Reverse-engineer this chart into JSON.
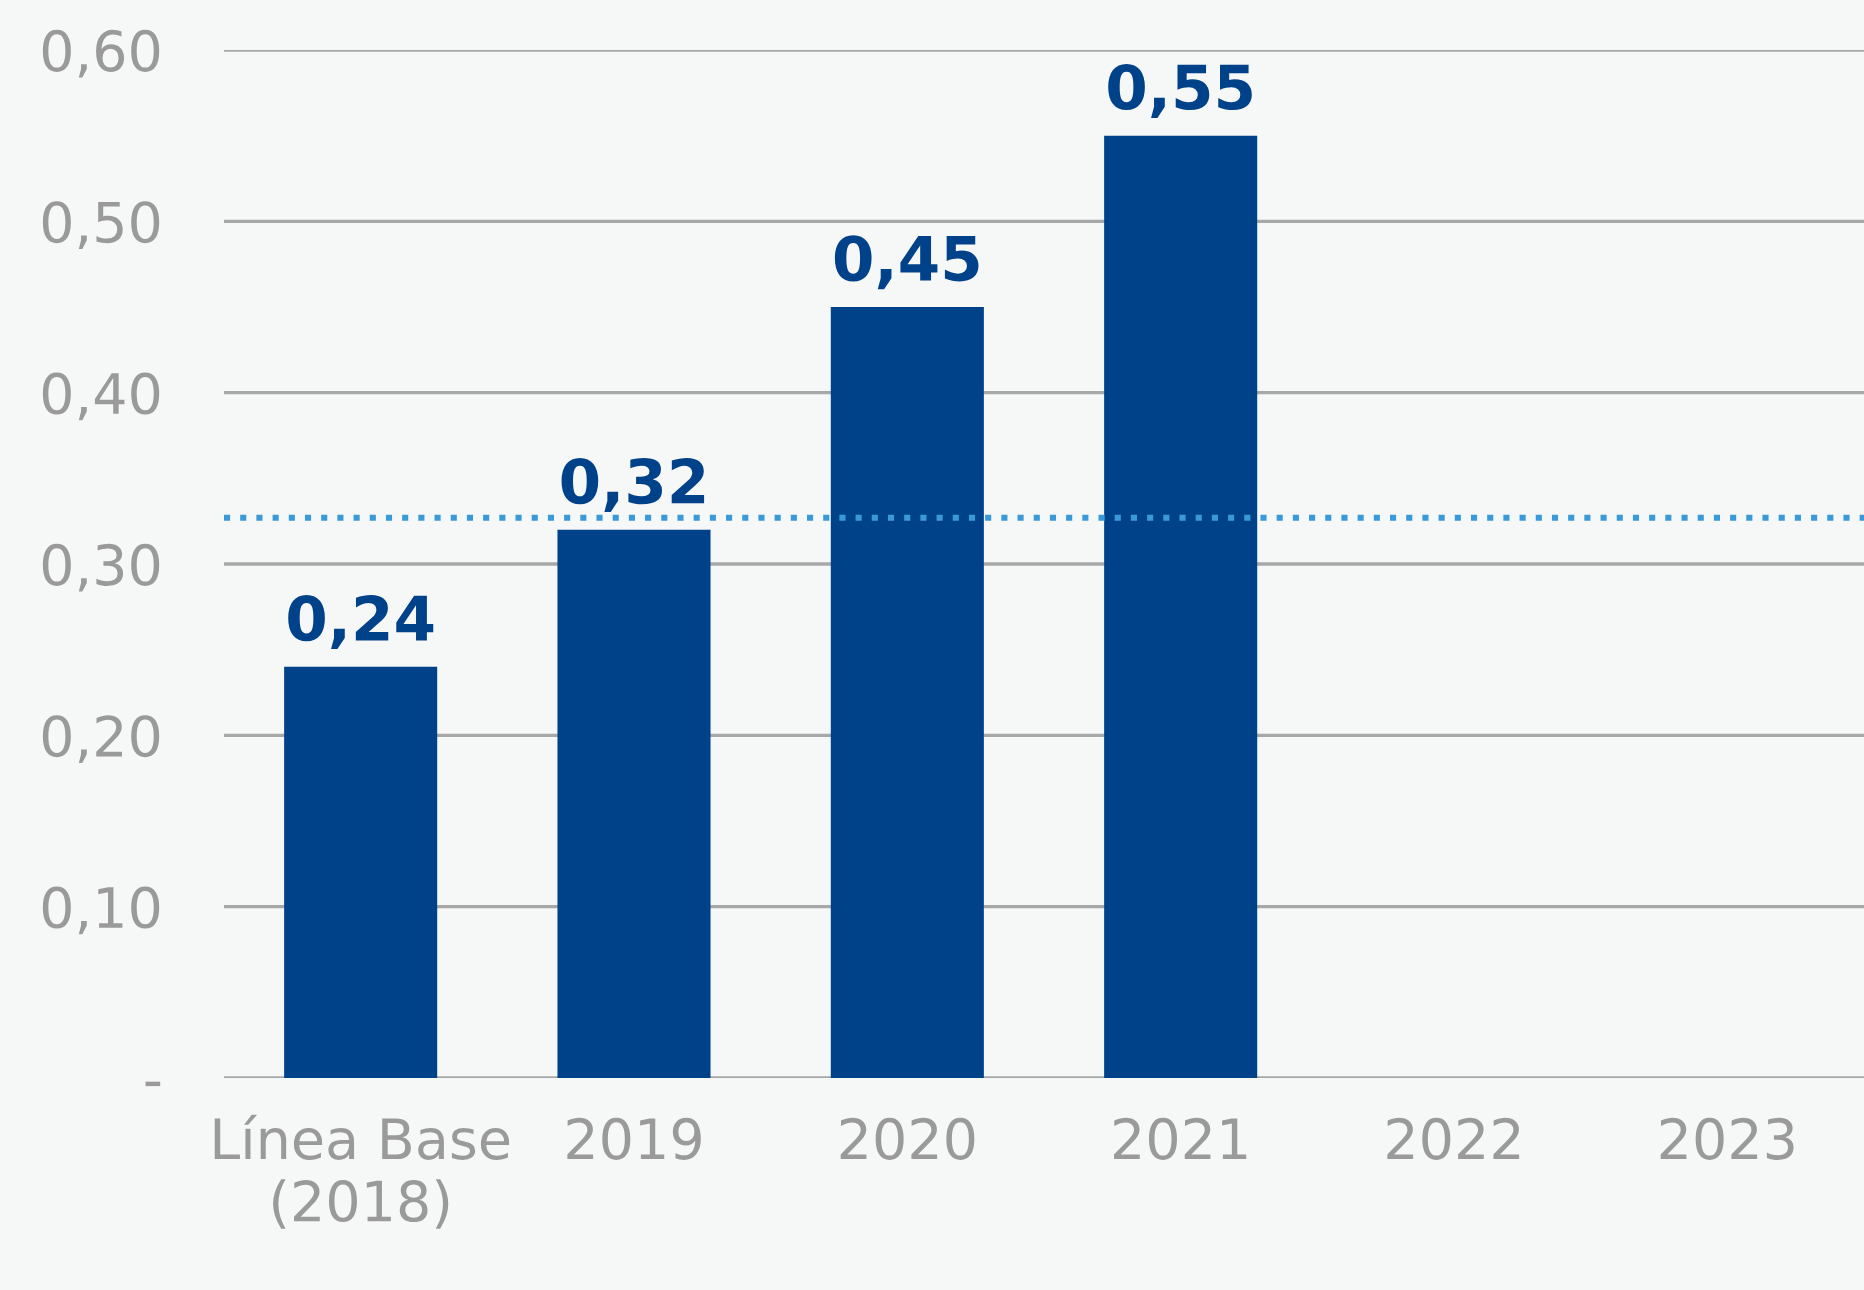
{
  "chart_data": {
    "type": "bar",
    "categories": [
      "Línea Base\n(2018)",
      "2019",
      "2020",
      "2021",
      "2022",
      "2023"
    ],
    "values": [
      0.24,
      0.32,
      0.45,
      0.55,
      null,
      null
    ],
    "value_labels": [
      "0,24",
      "0,32",
      "0,45",
      "0,55",
      null,
      null
    ],
    "color": "#00428a",
    "ylim": [
      0,
      0.6
    ],
    "yticks": [
      {
        "value": 0,
        "label": "-"
      },
      {
        "value": 0.1,
        "label": "0,10"
      },
      {
        "value": 0.2,
        "label": "0,20"
      },
      {
        "value": 0.3,
        "label": "0,30"
      },
      {
        "value": 0.4,
        "label": "0,40"
      },
      {
        "value": 0.5,
        "label": "0,50"
      },
      {
        "value": 0.6,
        "label": "0,60"
      }
    ],
    "grid": "y",
    "ref_lines": [
      {
        "axis": "y",
        "value": 0.327,
        "color": "#3a9ad9",
        "line_style": "dotted"
      }
    ]
  }
}
